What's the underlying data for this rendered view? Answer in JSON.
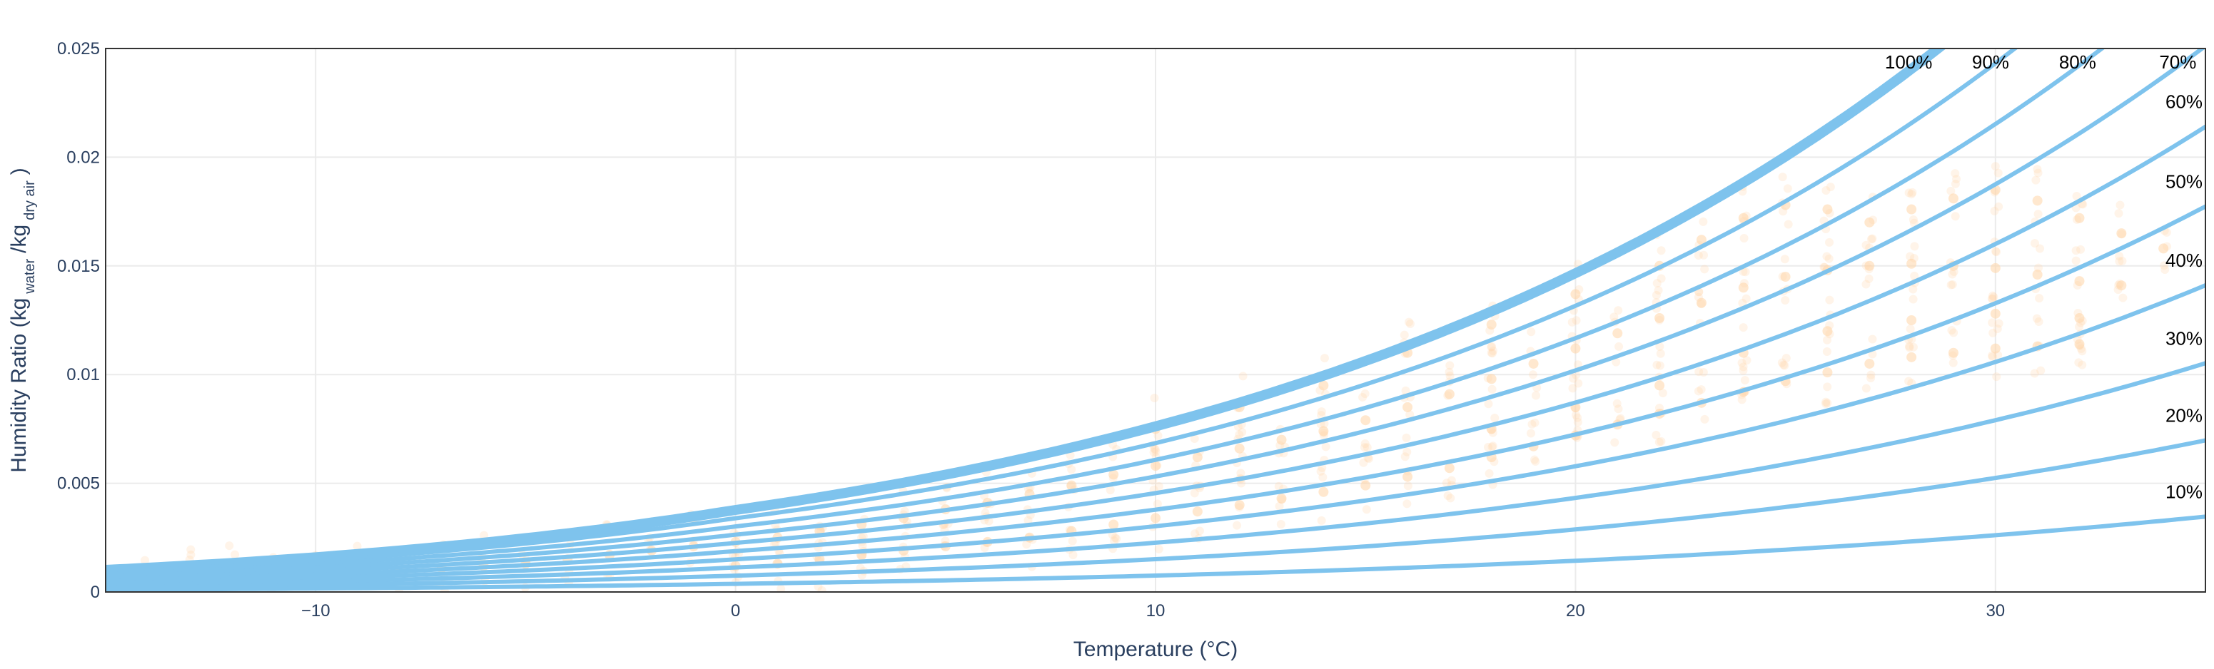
{
  "chart_data": {
    "type": "scatter",
    "title": "",
    "xlabel": "Temperature (°C)",
    "ylabel": {
      "main": "Humidity Ratio (kg",
      "sub1": "water",
      "mid": "/kg",
      "sub2": "dry air",
      "end": ")"
    },
    "xlim": [
      -15,
      35
    ],
    "ylim": [
      0,
      0.025
    ],
    "x_ticks": [
      -10,
      0,
      10,
      20,
      30
    ],
    "x_tick_labels": [
      "−10",
      "0",
      "10",
      "20",
      "30"
    ],
    "y_ticks": [
      0,
      0.005,
      0.01,
      0.015,
      0.02,
      0.025
    ],
    "y_tick_labels": [
      "0",
      "0.005",
      "0.01",
      "0.015",
      "0.02",
      "0.025"
    ],
    "grid": true,
    "pressure_kpa": 101.325,
    "rh_curves": [
      {
        "name": "100%",
        "rh": 1.0
      },
      {
        "name": "90%",
        "rh": 0.9
      },
      {
        "name": "80%",
        "rh": 0.8
      },
      {
        "name": "70%",
        "rh": 0.7
      },
      {
        "name": "60%",
        "rh": 0.6
      },
      {
        "name": "50%",
        "rh": 0.5
      },
      {
        "name": "40%",
        "rh": 0.4
      },
      {
        "name": "30%",
        "rh": 0.3
      },
      {
        "name": "20%",
        "rh": 0.2
      },
      {
        "name": "10%",
        "rh": 0.1
      }
    ],
    "scatter_points": [
      [
        -14,
        0.0007
      ],
      [
        -13,
        0.0007
      ],
      [
        -12,
        0.0008
      ],
      [
        -11,
        0.0008
      ],
      [
        -10,
        0.0009
      ],
      [
        -9,
        0.0009
      ],
      [
        -8,
        0.001
      ],
      [
        -7,
        0.0011
      ],
      [
        -6,
        0.0012
      ],
      [
        -5,
        0.0013
      ],
      [
        -4,
        0.0015
      ],
      [
        -3,
        0.0017
      ],
      [
        -2,
        0.0019
      ],
      [
        -1,
        0.0021
      ],
      [
        0,
        0.0023
      ],
      [
        1,
        0.0025
      ],
      [
        2,
        0.0028
      ],
      [
        3,
        0.0031
      ],
      [
        4,
        0.0034
      ],
      [
        5,
        0.0038
      ],
      [
        6,
        0.0041
      ],
      [
        7,
        0.0045
      ],
      [
        8,
        0.0049
      ],
      [
        9,
        0.0054
      ],
      [
        10,
        0.0058
      ],
      [
        11,
        0.0062
      ],
      [
        12,
        0.0066
      ],
      [
        13,
        0.007
      ],
      [
        14,
        0.0074
      ],
      [
        15,
        0.0079
      ],
      [
        16,
        0.0085
      ],
      [
        17,
        0.0091
      ],
      [
        18,
        0.0098
      ],
      [
        19,
        0.0105
      ],
      [
        20,
        0.0112
      ],
      [
        21,
        0.0119
      ],
      [
        22,
        0.0126
      ],
      [
        23,
        0.0133
      ],
      [
        24,
        0.014
      ],
      [
        25,
        0.0145
      ],
      [
        26,
        0.0148
      ],
      [
        27,
        0.015
      ],
      [
        28,
        0.0151
      ],
      [
        29,
        0.015
      ],
      [
        30,
        0.0149
      ],
      [
        31,
        0.0146
      ],
      [
        32,
        0.0143
      ],
      [
        33,
        0.0141
      ],
      [
        0,
        0.0012
      ],
      [
        1,
        0.0013
      ],
      [
        2,
        0.0015
      ],
      [
        3,
        0.0017
      ],
      [
        4,
        0.0019
      ],
      [
        5,
        0.0021
      ],
      [
        6,
        0.0023
      ],
      [
        7,
        0.0025
      ],
      [
        8,
        0.0028
      ],
      [
        9,
        0.0031
      ],
      [
        10,
        0.0034
      ],
      [
        11,
        0.0037
      ],
      [
        12,
        0.004
      ],
      [
        13,
        0.0043
      ],
      [
        14,
        0.0046
      ],
      [
        15,
        0.0049
      ],
      [
        16,
        0.0053
      ],
      [
        17,
        0.0057
      ],
      [
        18,
        0.0062
      ],
      [
        19,
        0.0067
      ],
      [
        20,
        0.0072
      ],
      [
        21,
        0.0077
      ],
      [
        22,
        0.0082
      ],
      [
        23,
        0.0087
      ],
      [
        24,
        0.0092
      ],
      [
        25,
        0.0097
      ],
      [
        26,
        0.0101
      ],
      [
        27,
        0.0105
      ],
      [
        28,
        0.0108
      ],
      [
        29,
        0.011
      ],
      [
        30,
        0.0112
      ],
      [
        31,
        0.0113
      ],
      [
        32,
        0.0114
      ],
      [
        10,
        0.0075
      ],
      [
        12,
        0.0085
      ],
      [
        14,
        0.0095
      ],
      [
        16,
        0.011
      ],
      [
        18,
        0.0123
      ],
      [
        20,
        0.0137
      ],
      [
        22,
        0.015
      ],
      [
        23,
        0.0162
      ],
      [
        24,
        0.0172
      ],
      [
        25,
        0.0178
      ],
      [
        26,
        0.0176
      ],
      [
        27,
        0.017
      ],
      [
        28,
        0.0176
      ],
      [
        29,
        0.0181
      ],
      [
        30,
        0.0185
      ],
      [
        31,
        0.018
      ],
      [
        32,
        0.0172
      ],
      [
        33,
        0.0165
      ],
      [
        34,
        0.0158
      ],
      [
        18,
        0.0075
      ],
      [
        20,
        0.0085
      ],
      [
        22,
        0.0095
      ],
      [
        24,
        0.011
      ],
      [
        26,
        0.012
      ],
      [
        28,
        0.0125
      ],
      [
        30,
        0.0128
      ],
      [
        32,
        0.0126
      ]
    ],
    "colors": {
      "curve": "#7ec3ed",
      "scatter": "#ffd5a8",
      "axis_text": "#2a3f5f",
      "grid": "#ebebeb",
      "frame": "#333333"
    }
  }
}
